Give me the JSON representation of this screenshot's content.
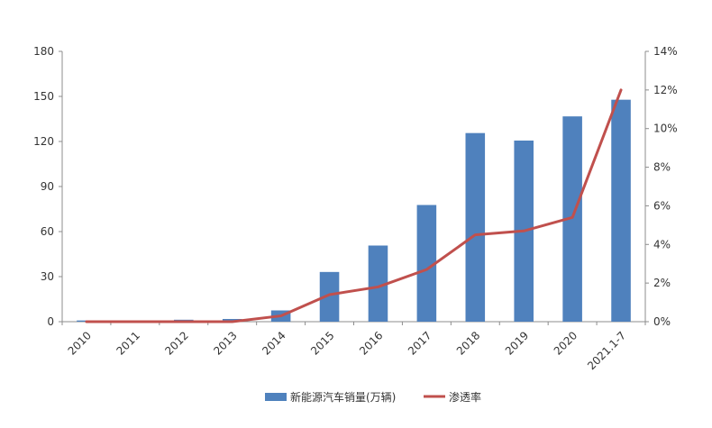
{
  "chart_data": {
    "type": "bar",
    "categories": [
      "2010",
      "2011",
      "2012",
      "2013",
      "2014",
      "2015",
      "2016",
      "2017",
      "2018",
      "2019",
      "2020",
      "2021.1-7"
    ],
    "series": [
      {
        "name": "新能源汽车销量(万辆)",
        "type": "bar",
        "axis": "left",
        "color": "#4F81BD",
        "values": [
          0.8,
          0.8,
          1.3,
          1.8,
          7.5,
          33.1,
          50.7,
          77.7,
          125.6,
          120.6,
          136.7,
          147.8
        ]
      },
      {
        "name": "渗透率",
        "type": "line",
        "axis": "right",
        "color": "#C0504D",
        "values": [
          0.0,
          0.0,
          0.0,
          0.0,
          0.3,
          1.4,
          1.8,
          2.7,
          4.5,
          4.7,
          5.4,
          12.0
        ]
      }
    ],
    "y_left": {
      "min": 0,
      "max": 180,
      "ticks": [
        "0",
        "30",
        "60",
        "90",
        "120",
        "150",
        "180"
      ]
    },
    "y_right": {
      "min": 0,
      "max": 14,
      "ticks": [
        "0%",
        "2%",
        "4%",
        "6%",
        "8%",
        "10%",
        "12%",
        "14%"
      ]
    },
    "grid": false,
    "legend_position": "bottom"
  }
}
